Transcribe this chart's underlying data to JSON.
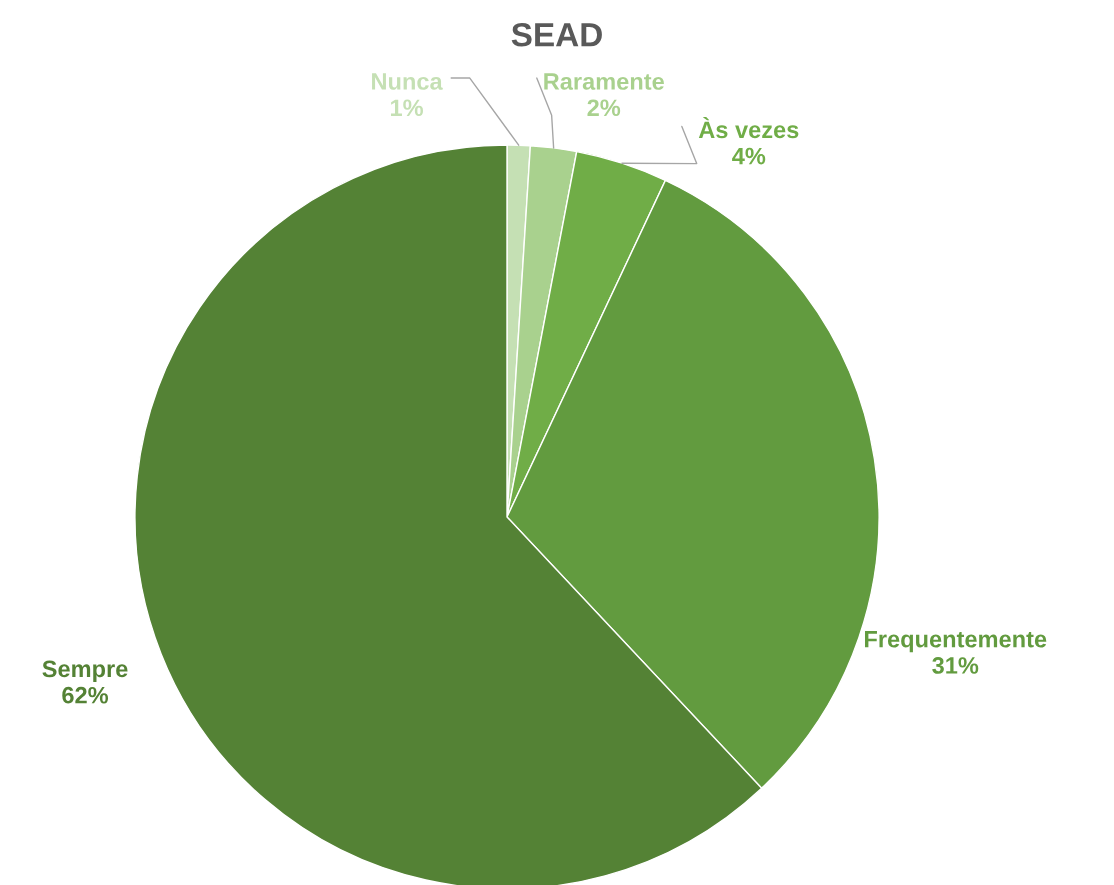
{
  "chart_data": {
    "type": "pie",
    "title": "SEAD",
    "categories": [
      "Nunca",
      "Raramente",
      "Às vezes",
      "Frequentemente",
      "Sempre"
    ],
    "values": [
      1,
      2,
      4,
      31,
      62
    ],
    "colors": [
      "#c5e0b4",
      "#a9d18e",
      "#70ad47",
      "#629b3f",
      "#548235"
    ],
    "value_labels": [
      "1%",
      "2%",
      "4%",
      "31%",
      "62%"
    ]
  }
}
